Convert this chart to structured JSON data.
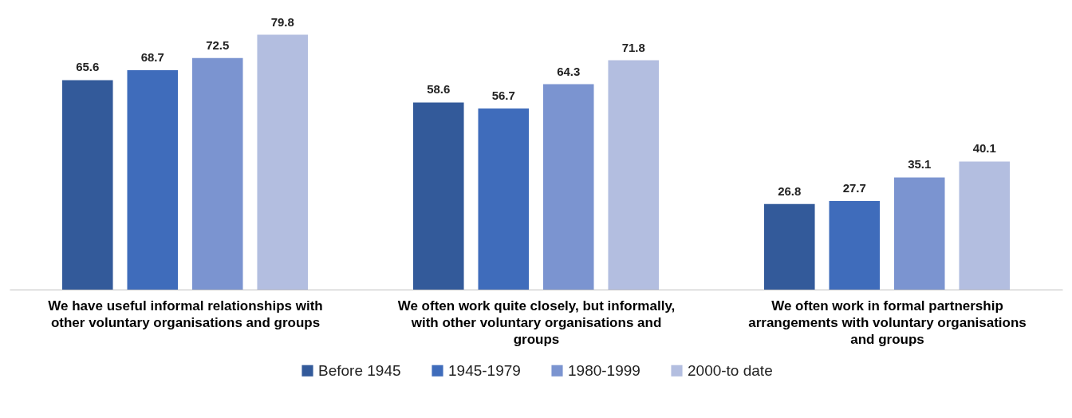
{
  "chart_data": {
    "type": "bar",
    "tick_labels": "x",
    "categories": [
      "We have useful informal relationships with other voluntary organisations and groups",
      "We often work quite closely, but informally, with other voluntary organisations and groups",
      "We often work in formal partnership arrangements with voluntary organisations and groups"
    ],
    "series": [
      {
        "name": "Before 1945",
        "color": "#335a9a",
        "values": [
          65.6,
          58.6,
          26.8
        ]
      },
      {
        "name": "1945-1979",
        "color": "#3f6cbb",
        "values": [
          68.7,
          56.7,
          27.7
        ]
      },
      {
        "name": "1980-1999",
        "color": "#7b94d0",
        "values": [
          72.5,
          64.3,
          35.1
        ]
      },
      {
        "name": "2000-to date",
        "color": "#b3bee0",
        "values": [
          79.8,
          71.8,
          40.1
        ]
      }
    ],
    "data_labels": true,
    "legend": "bottom",
    "grid": false
  }
}
